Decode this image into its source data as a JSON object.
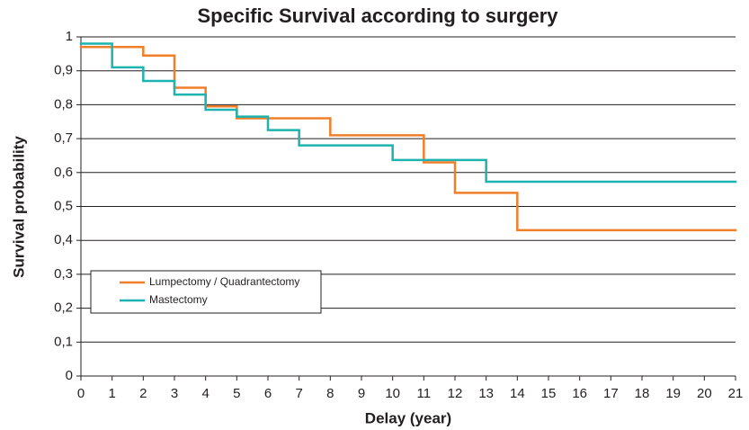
{
  "chart_data": {
    "type": "step",
    "title": "Specific Survival according to surgery",
    "x_label": "Delay (year)",
    "y_label": "Survival probability",
    "xlim": [
      0,
      21
    ],
    "ylim": [
      0,
      1
    ],
    "xticks": [
      0,
      1,
      2,
      3,
      4,
      5,
      6,
      7,
      8,
      9,
      10,
      11,
      12,
      13,
      14,
      15,
      16,
      17,
      18,
      19,
      20,
      21
    ],
    "yticks": [
      0,
      {
        "value": 0.1,
        "label": "0,1"
      },
      {
        "value": 0.2,
        "label": "0,2"
      },
      {
        "value": 0.3,
        "label": "0,3"
      },
      {
        "value": 0.4,
        "label": "0,4"
      },
      {
        "value": 0.5,
        "label": "0,5"
      },
      {
        "value": 0.6,
        "label": "0,6"
      },
      {
        "value": 0.7,
        "label": "0,7"
      },
      {
        "value": 0.8,
        "label": "0,8"
      },
      {
        "value": 0.9,
        "label": "0,9"
      },
      1
    ],
    "grid": true,
    "legend": "lower-left",
    "series": [
      {
        "name": "Lumpectomy / Quadrantectomy",
        "color": "#f07f2a",
        "x": [
          0,
          2,
          3,
          4,
          5,
          8,
          11,
          12,
          14
        ],
        "values": [
          0.97,
          0.945,
          0.85,
          0.795,
          0.76,
          0.71,
          0.63,
          0.54,
          0.43
        ]
      },
      {
        "name": "Mastectomy",
        "color": "#1db3b0",
        "x": [
          0,
          1,
          2,
          3,
          4,
          5,
          6,
          7,
          10,
          13
        ],
        "values": [
          0.98,
          0.91,
          0.87,
          0.83,
          0.785,
          0.765,
          0.725,
          0.68,
          0.637,
          0.573
        ]
      }
    ]
  }
}
